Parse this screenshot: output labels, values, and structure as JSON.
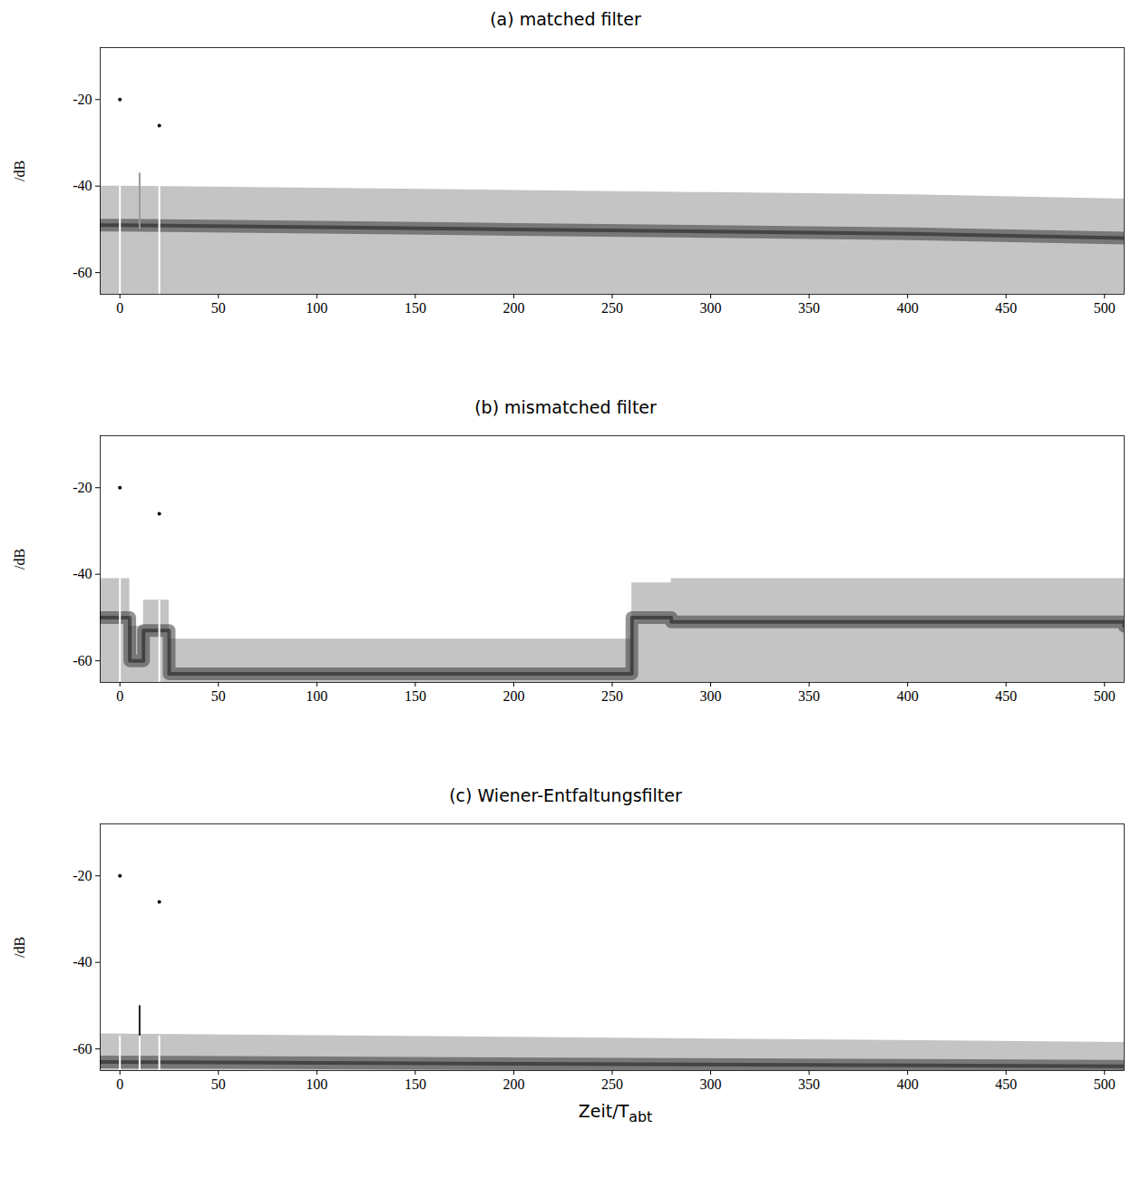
{
  "chart_data": [
    {
      "type": "area",
      "title": "(a) matched filter",
      "ylabel": "/dB",
      "xlim": [
        -10,
        510
      ],
      "xticks": [
        0,
        50,
        100,
        150,
        200,
        250,
        300,
        350,
        400,
        450,
        500
      ],
      "ylim": [
        -65,
        -8
      ],
      "yticks": [
        -20,
        -40,
        -60
      ],
      "line_style": "linear",
      "color": "#c4c4c4",
      "x": [
        -10,
        0,
        100,
        200,
        300,
        400,
        510
      ],
      "upper": [
        -40,
        -40,
        -40.5,
        -41,
        -41.5,
        -42,
        -43
      ],
      "center": [
        -49,
        -49,
        -49.5,
        -50,
        -50.5,
        -51,
        -52
      ],
      "lower": [
        -70,
        -70,
        -70,
        -70,
        -70,
        -70,
        -70
      ],
      "peaks": {
        "x": [
          0,
          20
        ],
        "y": [
          -20,
          -26
        ]
      },
      "gaps": [
        {
          "x": 0,
          "y1": -65,
          "y2": -40
        },
        {
          "x": 20,
          "y1": -65,
          "y2": -40
        }
      ],
      "spikes": [
        {
          "x": 10,
          "y1": -50,
          "y2": -37,
          "color": "#9a9a9a"
        }
      ]
    },
    {
      "type": "area",
      "title": "(b) mismatched filter",
      "ylabel": "/dB",
      "xlim": [
        -10,
        510
      ],
      "xticks": [
        0,
        50,
        100,
        150,
        200,
        250,
        300,
        350,
        400,
        450,
        500
      ],
      "ylim": [
        -65,
        -8
      ],
      "yticks": [
        -20,
        -40,
        -60
      ],
      "line_style": "step",
      "color": "#c4c4c4",
      "x": [
        -10,
        5,
        12,
        25,
        260,
        280,
        510
      ],
      "upper": [
        -41,
        -52,
        -46,
        -55,
        -42,
        -41,
        -42
      ],
      "center": [
        -50,
        -60,
        -53,
        -63,
        -50,
        -51,
        -52
      ],
      "lower": [
        -70,
        -70,
        -70,
        -70,
        -70,
        -70,
        -70
      ],
      "peaks": {
        "x": [
          0,
          20
        ],
        "y": [
          -20,
          -26
        ]
      },
      "gaps": [
        {
          "x": 0,
          "y1": -65,
          "y2": -41
        },
        {
          "x": 20,
          "y1": -65,
          "y2": -46
        }
      ],
      "spikes": []
    },
    {
      "type": "area",
      "title": "(c) Wiener-Entfaltungsfilter",
      "ylabel": "/dB",
      "xlabel": {
        "text": "Zeit/T",
        "subscript": "abt"
      },
      "xlim": [
        -10,
        510
      ],
      "xticks": [
        0,
        50,
        100,
        150,
        200,
        250,
        300,
        350,
        400,
        450,
        500
      ],
      "ylim": [
        -65,
        -8
      ],
      "yticks": [
        -20,
        -40,
        -60
      ],
      "line_style": "linear",
      "color": "#c4c4c4",
      "x": [
        -10,
        510
      ],
      "upper": [
        -56.5,
        -58.5
      ],
      "center": [
        -63,
        -64
      ],
      "lower": [
        -70,
        -70
      ],
      "peaks": {
        "x": [
          0,
          20
        ],
        "y": [
          -20,
          -26
        ]
      },
      "gaps": [
        {
          "x": 0,
          "y1": -65,
          "y2": -57
        },
        {
          "x": 20,
          "y1": -65,
          "y2": -57
        },
        {
          "x": 10,
          "y1": -65,
          "y2": -57
        }
      ],
      "spikes": [
        {
          "x": 10,
          "y1": -57,
          "y2": -50,
          "color": "#222222"
        }
      ]
    }
  ]
}
